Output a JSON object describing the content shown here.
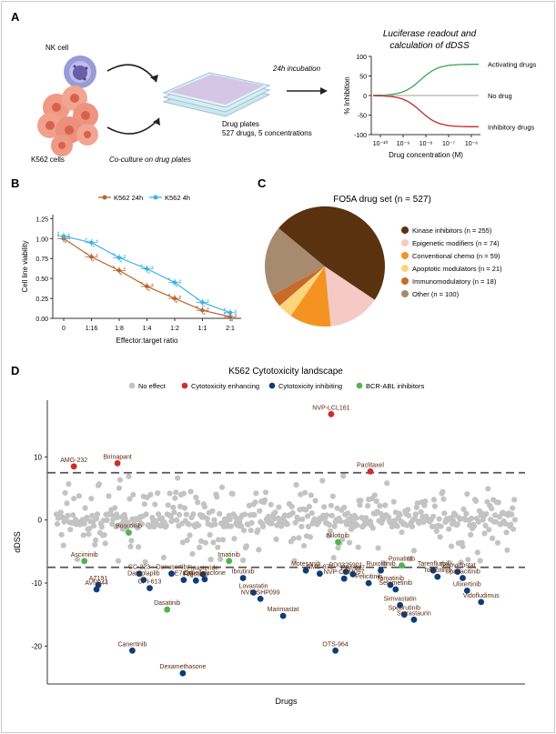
{
  "panels": {
    "A": "A",
    "B": "B",
    "C": "C",
    "D": "D"
  },
  "panel_a": {
    "nk_cell_label": "NK cell",
    "k562_label": "K562 cells",
    "coculture_label": "Co-culture on drug plates",
    "drug_plates_label": "Drug plates",
    "drug_plates_sub": "527 drugs, 5 concentrations",
    "incubation_label": "24h incubation",
    "readout_title_line1": "Luciferase readout and",
    "readout_title_line2": "calculation of dDSS",
    "legend_activating": "Activating drugs",
    "legend_no_drug": "No drug",
    "legend_inhibitory": "Inhibitory drugs",
    "colors": {
      "activating": "#3aa655",
      "no_drug": "#b0b0b0",
      "inhibitory": "#c0282b"
    }
  },
  "chart_data": [
    {
      "type": "line",
      "id": "A",
      "xlabel": "Drug concentration (M)",
      "ylabel": "% Inhibition",
      "x_ticks": [
        "10⁻¹⁰",
        "10⁻⁹",
        "10⁻⁸",
        "10⁻⁷",
        "10⁻⁶"
      ],
      "y_ticks": [
        100,
        50,
        0,
        -50,
        -100
      ],
      "ylim": [
        -100,
        100
      ],
      "series": [
        {
          "name": "Activating drugs",
          "y_plateau": 80
        },
        {
          "name": "No drug",
          "y_plateau": 0
        },
        {
          "name": "Inhibitory drugs",
          "y_plateau": -80
        }
      ]
    },
    {
      "type": "line",
      "id": "B",
      "xlabel": "Effector:target ratio",
      "ylabel": "Cell line viability",
      "categories": [
        "0",
        "1:16",
        "1:8",
        "1:4",
        "1:2",
        "1:1",
        "2:1"
      ],
      "y_ticks": [
        "0.00",
        "0.25",
        "0.50",
        "0.75",
        "1.00",
        "1.25"
      ],
      "ylim": [
        0,
        1.3
      ],
      "series": [
        {
          "name": "K562 24h",
          "color": "#b8662e",
          "values": [
            1.0,
            0.77,
            0.6,
            0.4,
            0.25,
            0.1,
            0.02
          ]
        },
        {
          "name": "K562 4h",
          "color": "#3eb3e3",
          "values": [
            1.03,
            0.95,
            0.76,
            0.62,
            0.45,
            0.2,
            0.07
          ]
        }
      ]
    },
    {
      "type": "pie",
      "id": "C",
      "title": "FO5A drug set (n = 527)",
      "slices": [
        {
          "label": "Kinase inhibitors (n = 255)",
          "value": 255,
          "color": "#5a3210"
        },
        {
          "label": "Epigenetic modifiers (n = 74)",
          "value": 74,
          "color": "#f5c9c6"
        },
        {
          "label": "Conventional chemo (n = 59)",
          "value": 59,
          "color": "#f59322"
        },
        {
          "label": "Apoptotic modulators (n = 21)",
          "value": 21,
          "color": "#fcd57b"
        },
        {
          "label": "Immunomodulatory (n = 18)",
          "value": 18,
          "color": "#c76a2a"
        },
        {
          "label": "Other (n = 100)",
          "value": 100,
          "color": "#a88a6e"
        }
      ]
    },
    {
      "type": "scatter",
      "id": "D",
      "title": "K562 Cytotoxicity landscape",
      "xlabel": "Drugs",
      "ylabel": "dDSS",
      "y_ticks": [
        10,
        0,
        -10,
        -20
      ],
      "ylim": [
        -26,
        19
      ],
      "thresholds": [
        7.5,
        -7.5
      ],
      "legend": [
        {
          "name": "No effect",
          "color": "#c3c3c3"
        },
        {
          "name": "Cytotoxicity enhancing",
          "color": "#d12b2b"
        },
        {
          "name": "Cytotoxicity inhibiting",
          "color": "#0d3d7a"
        },
        {
          "name": "BCR-ABL inhibitors",
          "color": "#4fb54a"
        }
      ],
      "labeled_points": [
        {
          "name": "AMG-232",
          "x": 20,
          "y": 8.5,
          "group": "enh"
        },
        {
          "name": "Birinapant",
          "x": 70,
          "y": 9.0,
          "group": "enh"
        },
        {
          "name": "NVP-LCL161",
          "x": 315,
          "y": 16.8,
          "group": "enh"
        },
        {
          "name": "Paclitaxel",
          "x": 360,
          "y": 7.7,
          "group": "enh"
        },
        {
          "name": "Bosutinib",
          "x": 83,
          "y": -2.0,
          "group": "bcr"
        },
        {
          "name": "Asciminib",
          "x": 32,
          "y": -6.5,
          "group": "bcr"
        },
        {
          "name": "Imatinib",
          "x": 198,
          "y": -6.5,
          "group": "bcr"
        },
        {
          "name": "Nilotinib",
          "x": 323,
          "y": -3.5,
          "group": "bcr"
        },
        {
          "name": "Dasatinib",
          "x": 127,
          "y": -14.2,
          "group": "bcr"
        },
        {
          "name": "Ponatinib",
          "x": 396,
          "y": -7.2,
          "group": "bcr"
        },
        {
          "name": "AZ191",
          "x": 48,
          "y": -10.3,
          "group": "inh"
        },
        {
          "name": "AVN944",
          "x": 46,
          "y": -11.0,
          "group": "inh"
        },
        {
          "name": "CC-223",
          "x": 95,
          "y": -8.5,
          "group": "inh"
        },
        {
          "name": "Daraplaplib",
          "x": 100,
          "y": -9.5,
          "group": "inh"
        },
        {
          "name": "CPI-613",
          "x": 107,
          "y": -10.8,
          "group": "inh"
        },
        {
          "name": "Danusertib",
          "x": 132,
          "y": -8.5,
          "group": "inh"
        },
        {
          "name": "E7820",
          "x": 146,
          "y": -9.5,
          "group": "inh"
        },
        {
          "name": "Finasteride",
          "x": 168,
          "y": -8.6,
          "group": "inh"
        },
        {
          "name": "Filgotinib",
          "x": 160,
          "y": -9.6,
          "group": "inh"
        },
        {
          "name": "Galiellalactone",
          "x": 170,
          "y": -9.4,
          "group": "inh"
        },
        {
          "name": "Ibrutinib",
          "x": 214,
          "y": -9.2,
          "group": "inh"
        },
        {
          "name": "Lovastatin",
          "x": 226,
          "y": -11.5,
          "group": "inh"
        },
        {
          "name": "NVP-SHP099",
          "x": 234,
          "y": -12.5,
          "group": "inh"
        },
        {
          "name": "Marimastat",
          "x": 260,
          "y": -15.2,
          "group": "inh"
        },
        {
          "name": "Motesanib",
          "x": 286,
          "y": -8.0,
          "group": "inh"
        },
        {
          "name": "NMS-873",
          "x": 302,
          "y": -8.5,
          "group": "inh"
        },
        {
          "name": "PD0325901",
          "x": 332,
          "y": -8.2,
          "group": "inh"
        },
        {
          "name": "NVP-CGM097",
          "x": 330,
          "y": -9.3,
          "group": "inh"
        },
        {
          "name": "PIM-447",
          "x": 340,
          "y": -8.6,
          "group": "inh"
        },
        {
          "name": "Pelicitinib",
          "x": 358,
          "y": -10.0,
          "group": "inh"
        },
        {
          "name": "Ruxolitinib",
          "x": 372,
          "y": -8.0,
          "group": "inh"
        },
        {
          "name": "Tamatinib",
          "x": 383,
          "y": -10.3,
          "group": "inh"
        },
        {
          "name": "Selumetinib",
          "x": 389,
          "y": -11.0,
          "group": "inh"
        },
        {
          "name": "Simvastatin",
          "x": 394,
          "y": -13.5,
          "group": "inh"
        },
        {
          "name": "Spebrutinib",
          "x": 399,
          "y": -15.0,
          "group": "inh"
        },
        {
          "name": "Sotrastaurin",
          "x": 410,
          "y": -15.8,
          "group": "inh"
        },
        {
          "name": "Tarenflurbil",
          "x": 432,
          "y": -8.0,
          "group": "inh"
        },
        {
          "name": "Tofacitinib",
          "x": 437,
          "y": -9.0,
          "group": "inh"
        },
        {
          "name": "Tenovefostat",
          "x": 460,
          "y": -8.2,
          "group": "inh"
        },
        {
          "name": "Upadacitinib",
          "x": 466,
          "y": -9.2,
          "group": "inh"
        },
        {
          "name": "Ulixertinib",
          "x": 471,
          "y": -11.2,
          "group": "inh"
        },
        {
          "name": "Vidofludimus",
          "x": 487,
          "y": -13.0,
          "group": "inh"
        },
        {
          "name": "Canertinib",
          "x": 87,
          "y": -20.7,
          "group": "inh"
        },
        {
          "name": "Dexamethasone",
          "x": 145,
          "y": -24.3,
          "group": "inh"
        },
        {
          "name": "OTS-964",
          "x": 320,
          "y": -20.7,
          "group": "inh"
        }
      ]
    }
  ]
}
